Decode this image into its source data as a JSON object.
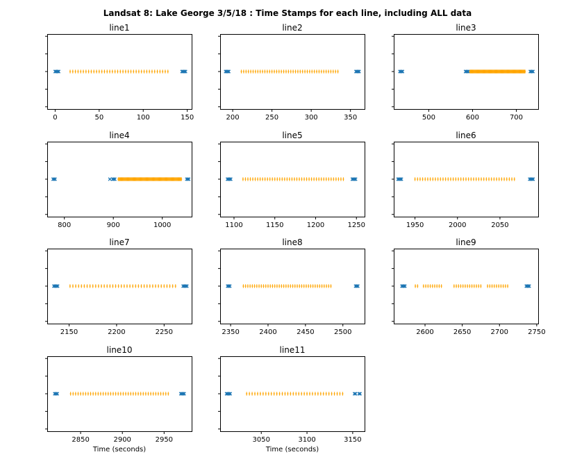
{
  "figure": {
    "title": "Landsat 8: Lake George 3/5/18 : Time Stamps for each line, including ALL data"
  },
  "colors": {
    "edge": "#1f77b4",
    "middle": "#ffa500",
    "axes": "#000000"
  },
  "chart_data": [
    {
      "type": "scatter",
      "title": "line1",
      "xlabel": "",
      "xlim": [
        -9,
        155
      ],
      "xticks": [
        0,
        50,
        100,
        150
      ],
      "xtick_labels": [
        "0",
        "50",
        "100",
        "150"
      ],
      "series": [
        {
          "marker": "x",
          "color": "#1f77b4",
          "x": [
            0,
            1,
            2,
            3,
            4,
            144,
            145,
            146,
            147,
            148
          ]
        },
        {
          "marker": "+",
          "color": "#ffa500",
          "start": 17,
          "end": 128,
          "step": 3
        }
      ]
    },
    {
      "type": "scatter",
      "title": "line2",
      "xlabel": "",
      "xlim": [
        184,
        368
      ],
      "xticks": [
        200,
        250,
        300,
        350
      ],
      "xtick_labels": [
        "200",
        "250",
        "300",
        "350"
      ],
      "series": [
        {
          "marker": "x",
          "color": "#1f77b4",
          "x": [
            191,
            192,
            193,
            194,
            195,
            357,
            358,
            359,
            360,
            361
          ]
        },
        {
          "marker": "+",
          "color": "#ffa500",
          "start": 211,
          "end": 336,
          "step": 3
        }
      ]
    },
    {
      "type": "scatter",
      "title": "line3",
      "xlabel": "",
      "xlim": [
        420,
        750
      ],
      "xticks": [
        500,
        600,
        700
      ],
      "xtick_labels": [
        "500",
        "600",
        "700"
      ],
      "series": [
        {
          "marker": "x",
          "color": "#1f77b4",
          "x": [
            434,
            436,
            438,
            440,
            584,
            586,
            588,
            590,
            732,
            734,
            736,
            738
          ]
        },
        {
          "marker": "+",
          "color": "#ffa500",
          "start": 594,
          "end": 720,
          "step": 1.5
        }
      ]
    },
    {
      "type": "scatter",
      "title": "line4",
      "xlabel": "",
      "xlim": [
        765,
        1060
      ],
      "xticks": [
        800,
        900,
        1000
      ],
      "xtick_labels": [
        "800",
        "900",
        "1000"
      ],
      "series": [
        {
          "marker": "x",
          "color": "#1f77b4",
          "x": [
            777,
            779,
            781,
            893,
            899,
            901,
            903,
            1050,
            1052,
            1054
          ]
        },
        {
          "marker": "+",
          "color": "#ffa500",
          "start": 910,
          "end": 1040,
          "step": 1.5
        }
      ]
    },
    {
      "type": "scatter",
      "title": "line5",
      "xlabel": "",
      "xlim": [
        1083,
        1260
      ],
      "xticks": [
        1100,
        1150,
        1200,
        1250
      ],
      "xtick_labels": [
        "1100",
        "1150",
        "1200",
        "1250"
      ],
      "series": [
        {
          "marker": "x",
          "color": "#1f77b4",
          "x": [
            1092,
            1093,
            1094,
            1095,
            1096,
            1245,
            1246,
            1247,
            1248,
            1249
          ]
        },
        {
          "marker": "+",
          "color": "#ffa500",
          "start": 1111,
          "end": 1234,
          "step": 3
        }
      ]
    },
    {
      "type": "scatter",
      "title": "line6",
      "xlabel": "",
      "xlim": [
        1925,
        2095
      ],
      "xticks": [
        1950,
        2000,
        2050
      ],
      "xtick_labels": [
        "1950",
        "2000",
        "2050"
      ],
      "series": [
        {
          "marker": "x",
          "color": "#1f77b4",
          "x": [
            1930,
            1931,
            1932,
            1933,
            1934,
            2085,
            2086,
            2087,
            2088,
            2089
          ]
        },
        {
          "marker": "+",
          "color": "#ffa500",
          "start": 1950,
          "end": 2067,
          "step": 3
        }
      ]
    },
    {
      "type": "scatter",
      "title": "line7",
      "xlabel": "",
      "xlim": [
        2127,
        2279
      ],
      "xticks": [
        2150,
        2200,
        2250
      ],
      "xtick_labels": [
        "2150",
        "2200",
        "2250"
      ],
      "series": [
        {
          "marker": "x",
          "color": "#1f77b4",
          "x": [
            2134,
            2135,
            2136,
            2137,
            2138,
            2270,
            2271,
            2272,
            2273,
            2274
          ]
        },
        {
          "marker": "+",
          "color": "#ffa500",
          "start": 2151,
          "end": 2263,
          "step": 3
        }
      ]
    },
    {
      "type": "scatter",
      "title": "line8",
      "xlabel": "",
      "xlim": [
        2336,
        2529
      ],
      "xticks": [
        2350,
        2400,
        2450,
        2500
      ],
      "xtick_labels": [
        "2350",
        "2400",
        "2450",
        "2500"
      ],
      "series": [
        {
          "marker": "x",
          "color": "#1f77b4",
          "x": [
            2346,
            2347,
            2348,
            2349,
            2517,
            2518,
            2519,
            2520
          ]
        },
        {
          "marker": "+",
          "color": "#ffa500",
          "start": 2367,
          "end": 2484,
          "step": 3
        }
      ]
    },
    {
      "type": "scatter",
      "title": "line9",
      "xlabel": "",
      "xlim": [
        2558,
        2752
      ],
      "xticks": [
        2600,
        2650,
        2700,
        2750
      ],
      "xtick_labels": [
        "2600",
        "2650",
        "2700",
        "2750"
      ],
      "series": [
        {
          "marker": "x",
          "color": "#1f77b4",
          "x": [
            2569,
            2570,
            2571,
            2572,
            2573,
            2736,
            2737,
            2738,
            2739,
            2740
          ]
        },
        {
          "marker": "+",
          "color": "#ffa500",
          "x": [
            2587,
            2590,
            2598,
            2601,
            2604,
            2607,
            2610,
            2613,
            2616,
            2619,
            2622,
            2639,
            2642,
            2645,
            2648,
            2651,
            2654,
            2657,
            2660,
            2663,
            2666,
            2669,
            2672,
            2675,
            2684,
            2687,
            2690,
            2693,
            2696,
            2699,
            2702,
            2705,
            2708,
            2711
          ]
        }
      ]
    },
    {
      "type": "scatter",
      "title": "line10",
      "xlabel": "Time (seconds)",
      "xlim": [
        2810,
        2983
      ],
      "xticks": [
        2850,
        2900,
        2950
      ],
      "xtick_labels": [
        "2850",
        "2900",
        "2950"
      ],
      "series": [
        {
          "marker": "x",
          "color": "#1f77b4",
          "x": [
            2819,
            2820,
            2821,
            2822,
            2970,
            2971,
            2972,
            2973,
            2974
          ]
        },
        {
          "marker": "+",
          "color": "#ffa500",
          "start": 2838,
          "end": 2957,
          "step": 3
        }
      ]
    },
    {
      "type": "scatter",
      "title": "line11",
      "xlabel": "Time (seconds)",
      "xlim": [
        3005,
        3163
      ],
      "xticks": [
        3050,
        3100,
        3150
      ],
      "xtick_labels": [
        "3050",
        "3100",
        "3150"
      ],
      "series": [
        {
          "marker": "x",
          "color": "#1f77b4",
          "x": [
            3012,
            3013,
            3014,
            3015,
            3016,
            3152,
            3153,
            3157,
            3158
          ]
        },
        {
          "marker": "+",
          "color": "#ffa500",
          "start": 3034,
          "end": 3139,
          "step": 3
        }
      ]
    }
  ]
}
